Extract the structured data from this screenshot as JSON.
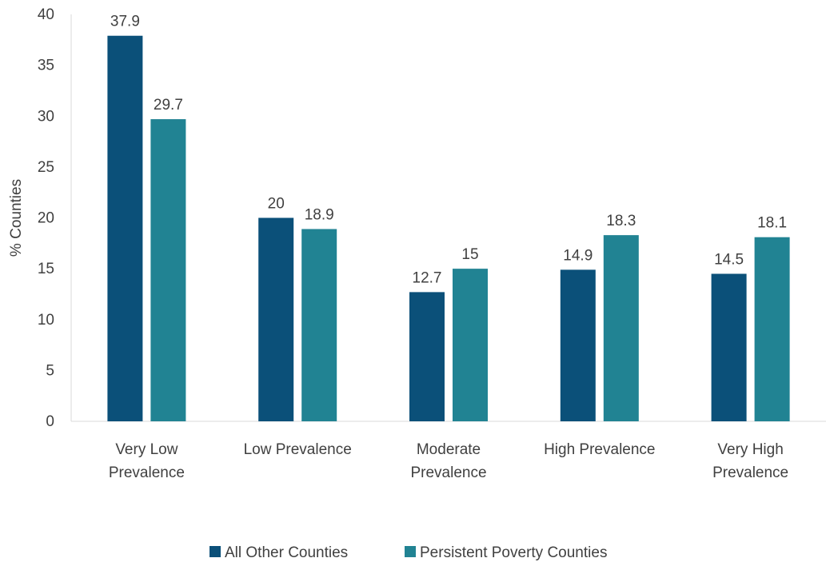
{
  "chart_data": {
    "type": "bar",
    "title": "",
    "xlabel": "",
    "ylabel": "% Counties",
    "ylim": [
      0,
      40
    ],
    "yticks": [
      0,
      5,
      10,
      15,
      20,
      25,
      30,
      35,
      40
    ],
    "grid": false,
    "legend_position": "bottom",
    "categories": [
      [
        "Very Low",
        "Prevalence"
      ],
      [
        "Low Prevalence"
      ],
      [
        "Moderate",
        "Prevalence"
      ],
      [
        "High Prevalence"
      ],
      [
        "Very High",
        "Prevalence"
      ]
    ],
    "series": [
      {
        "name": "All Other Counties",
        "color": "#0b5079",
        "values": [
          37.9,
          20,
          12.7,
          14.9,
          14.5
        ]
      },
      {
        "name": "Persistent Poverty Counties",
        "color": "#218393",
        "values": [
          29.7,
          18.9,
          15,
          18.3,
          18.1
        ]
      }
    ]
  }
}
